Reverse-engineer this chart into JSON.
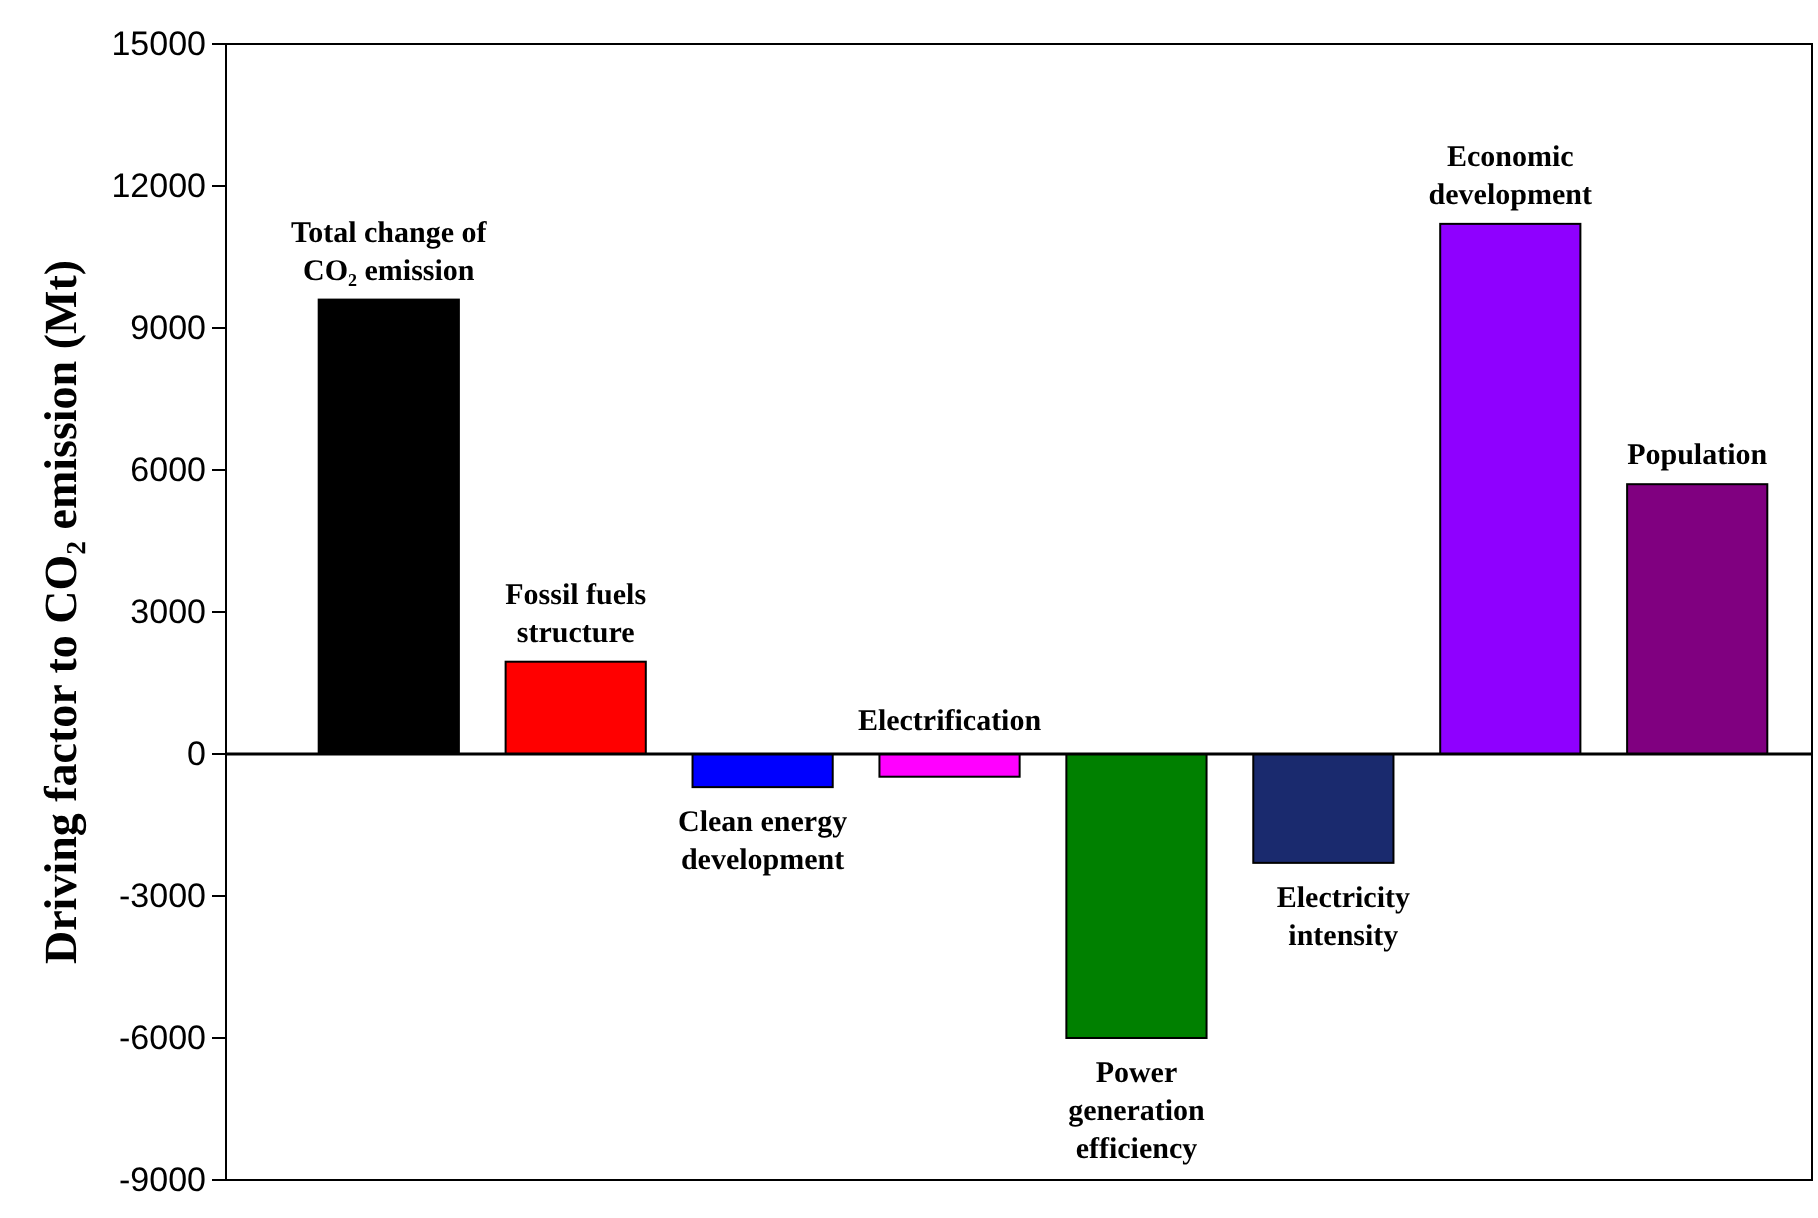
{
  "chart_data": {
    "type": "bar",
    "ylabel": "Driving factor to CO₂ emission (Mt)",
    "categories": [
      null,
      null,
      null,
      null,
      null,
      null,
      null,
      null
    ],
    "annotations": [
      "Total change of CO₂ emission",
      "Fossil fuels structure",
      "Clean energy development",
      "Electrification",
      "Power generation efficiency",
      "Electricity intensity",
      "Economic development",
      "Population"
    ],
    "values": [
      9600,
      1950,
      -700,
      -480,
      -6000,
      -2300,
      11200,
      5700
    ],
    "colors": [
      "#000000",
      "#ff0000",
      "#0000ff",
      "#ff00ff",
      "#008000",
      "#1a2a6e",
      "#8f00ff",
      "#800080"
    ],
    "ylim": [
      -9000,
      15000
    ],
    "yticks": [
      -9000,
      -6000,
      -3000,
      0,
      3000,
      6000,
      9000,
      12000,
      15000
    ],
    "grid": false,
    "legend": false,
    "ref_lines": [
      {
        "axis": "y",
        "value": 0,
        "color": "#000000"
      }
    ]
  }
}
